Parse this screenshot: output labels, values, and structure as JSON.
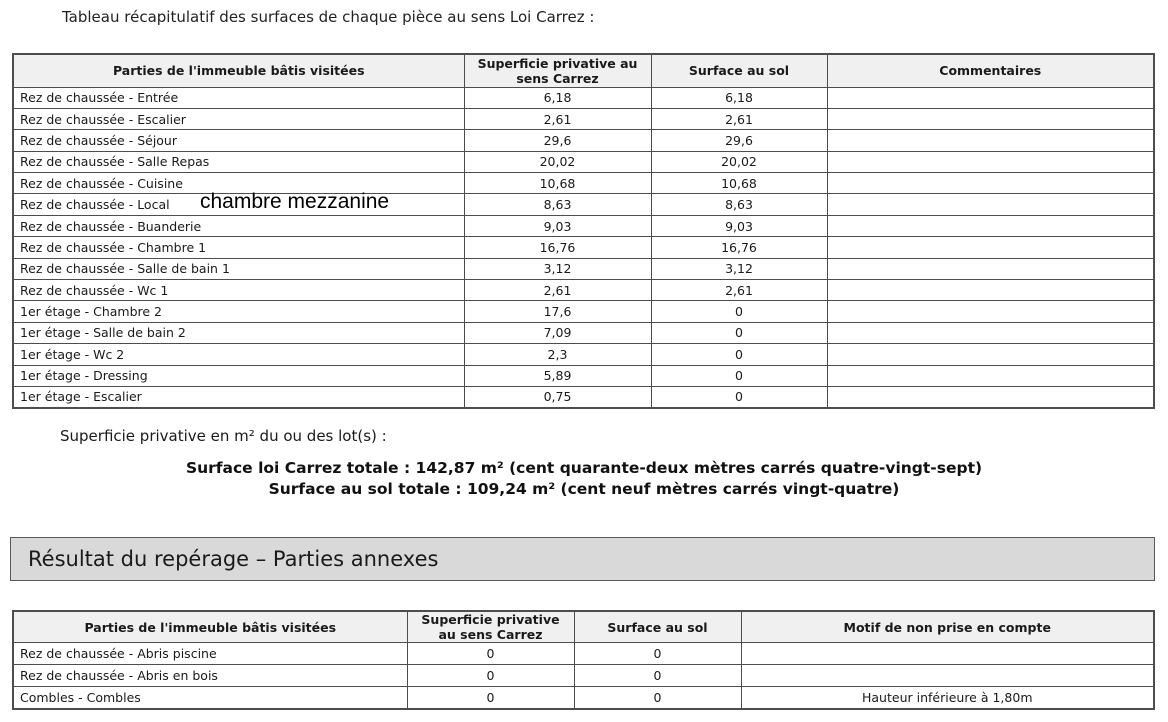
{
  "title": "Tableau récapitulatif des surfaces de chaque pièce au sens Loi Carrez :",
  "annotation": "chambre mezzanine",
  "main_table": {
    "columns": [
      "Parties de l'immeuble bâtis visitées",
      "Superficie privative au sens Carrez",
      "Surface au sol",
      "Commentaires"
    ],
    "rows": [
      {
        "label": "Rez de chaussée - Entrée",
        "carrez": "6,18",
        "sol": "6,18",
        "comment": ""
      },
      {
        "label": "Rez de chaussée - Escalier",
        "carrez": "2,61",
        "sol": "2,61",
        "comment": ""
      },
      {
        "label": "Rez de chaussée - Séjour",
        "carrez": "29,6",
        "sol": "29,6",
        "comment": ""
      },
      {
        "label": "Rez de chaussée - Salle Repas",
        "carrez": "20,02",
        "sol": "20,02",
        "comment": ""
      },
      {
        "label": "Rez de chaussée - Cuisine",
        "carrez": "10,68",
        "sol": "10,68",
        "comment": ""
      },
      {
        "label": "Rez de chaussée - Local",
        "carrez": "8,63",
        "sol": "8,63",
        "comment": ""
      },
      {
        "label": "Rez de chaussée - Buanderie",
        "carrez": "9,03",
        "sol": "9,03",
        "comment": ""
      },
      {
        "label": "Rez de chaussée - Chambre 1",
        "carrez": "16,76",
        "sol": "16,76",
        "comment": ""
      },
      {
        "label": "Rez de chaussée - Salle de bain 1",
        "carrez": "3,12",
        "sol": "3,12",
        "comment": ""
      },
      {
        "label": "Rez de chaussée - Wc 1",
        "carrez": "2,61",
        "sol": "2,61",
        "comment": ""
      },
      {
        "label": "1er étage - Chambre 2",
        "carrez": "17,6",
        "sol": "0",
        "comment": ""
      },
      {
        "label": "1er étage - Salle de bain 2",
        "carrez": "7,09",
        "sol": "0",
        "comment": ""
      },
      {
        "label": "1er étage - Wc 2",
        "carrez": "2,3",
        "sol": "0",
        "comment": ""
      },
      {
        "label": "1er étage - Dressing",
        "carrez": "5,89",
        "sol": "0",
        "comment": ""
      },
      {
        "label": "1er étage - Escalier",
        "carrez": "0,75",
        "sol": "0",
        "comment": ""
      }
    ]
  },
  "lots_label": "Superficie privative en m² du ou des lot(s) :",
  "totals": {
    "carrez_total": "Surface loi Carrez totale : 142,87 m² (cent quarante-deux mètres carrés quatre-vingt-sept)",
    "sol_total": "Surface au sol totale : 109,24 m² (cent neuf mètres carrés vingt-quatre)"
  },
  "section_header": "Résultat du repérage – Parties annexes",
  "annex_table": {
    "columns": [
      "Parties de l'immeuble bâtis visitées",
      "Superficie privative au sens Carrez",
      "Surface au sol",
      "Motif de non prise en compte"
    ],
    "rows": [
      {
        "label": "Rez de chaussée - Abris piscine",
        "carrez": "0",
        "sol": "0",
        "motif": ""
      },
      {
        "label": "Rez de chaussée - Abris en bois",
        "carrez": "0",
        "sol": "0",
        "motif": ""
      },
      {
        "label": "Combles - Combles",
        "carrez": "0",
        "sol": "0",
        "motif": "Hauteur inférieure à 1,80m"
      }
    ]
  }
}
